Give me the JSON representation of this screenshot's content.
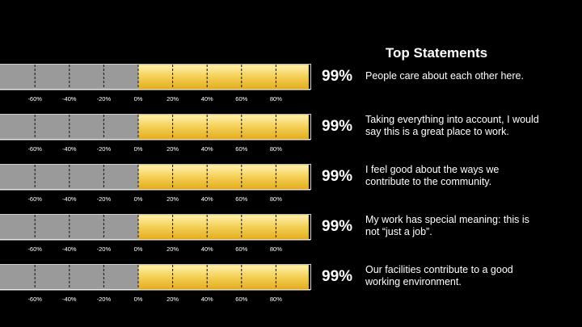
{
  "heading": "Top Statements",
  "colors": {
    "background": "#000000",
    "negative_fill": "#9a9a9a",
    "positive_fill": "#f2c83c",
    "text": "#ffffff"
  },
  "chart_data": {
    "type": "bar",
    "orientation": "horizontal-diverging",
    "title": "Top Statements",
    "xlim": [
      -100,
      100
    ],
    "tick_labels": [
      "-60%",
      "-40%",
      "-20%",
      "0%",
      "20%",
      "40%",
      "60%",
      "80%"
    ],
    "grid": true,
    "series": [
      {
        "negative": -100,
        "positive": 99
      },
      {
        "negative": -100,
        "positive": 99
      },
      {
        "negative": -100,
        "positive": 99
      },
      {
        "negative": -100,
        "positive": 99
      },
      {
        "negative": -100,
        "positive": 99
      }
    ],
    "items": [
      {
        "value": 99,
        "label": "99%",
        "statement": "People care about each other here."
      },
      {
        "value": 99,
        "label": "99%",
        "statement": "Taking everything into account, I would say this is a great place to work."
      },
      {
        "value": 99,
        "label": "99%",
        "statement": "I feel good about the ways we contribute to the community."
      },
      {
        "value": 99,
        "label": "99%",
        "statement": "My work has special meaning: this is not “just a job”."
      },
      {
        "value": 99,
        "label": "99%",
        "statement": "Our facilities contribute to a good working environment."
      }
    ]
  }
}
